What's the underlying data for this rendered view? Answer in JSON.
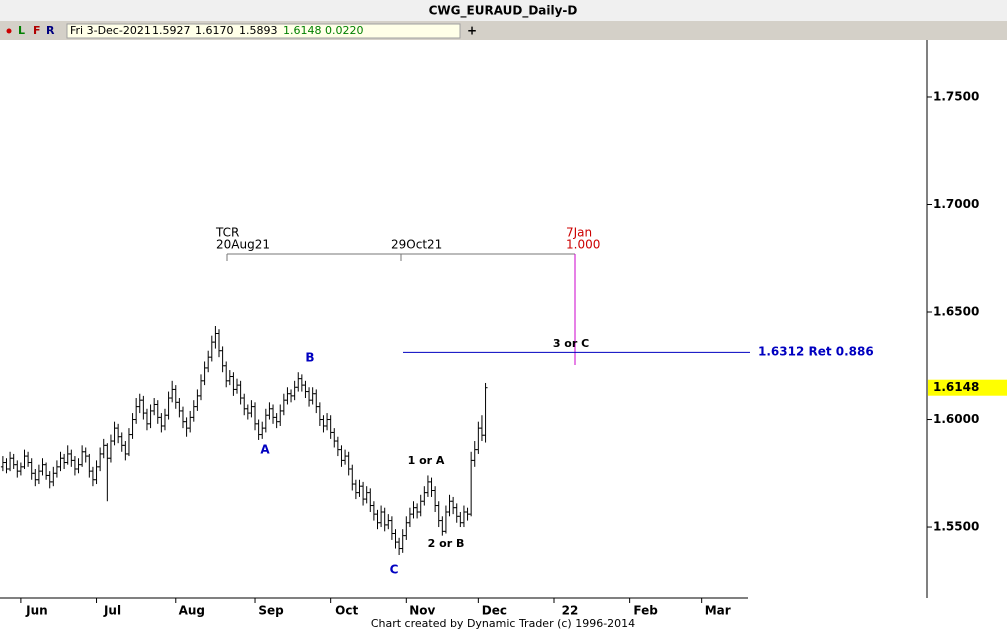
{
  "header": {
    "title": "CWG_EURAUD_Daily-D",
    "buttons": [
      "L",
      "F",
      "R"
    ],
    "readout": [
      "Fri 3-Dec-2021",
      "1.5927",
      "1.6170",
      "1.5893",
      "1.6148",
      "0.0220"
    ],
    "add": "+"
  },
  "chart_data": {
    "type": "ohlc",
    "color": "#000000",
    "bars": [
      [
        1.578,
        1.583,
        1.576,
        1.58
      ],
      [
        1.58,
        1.582,
        1.575,
        1.577
      ],
      [
        1.577,
        1.585,
        1.576,
        1.582
      ],
      [
        1.582,
        1.584,
        1.577,
        1.579
      ],
      [
        1.579,
        1.581,
        1.573,
        1.576
      ],
      [
        1.576,
        1.58,
        1.574,
        1.578
      ],
      [
        1.578,
        1.586,
        1.577,
        1.583
      ],
      [
        1.583,
        1.585,
        1.578,
        1.58
      ],
      [
        1.58,
        1.582,
        1.572,
        1.575
      ],
      [
        1.575,
        1.577,
        1.569,
        1.572
      ],
      [
        1.572,
        1.579,
        1.57,
        1.576
      ],
      [
        1.576,
        1.582,
        1.574,
        1.579
      ],
      [
        1.579,
        1.58,
        1.572,
        1.574
      ],
      [
        1.574,
        1.576,
        1.568,
        1.571
      ],
      [
        1.571,
        1.578,
        1.569,
        1.575
      ],
      [
        1.575,
        1.581,
        1.573,
        1.578
      ],
      [
        1.578,
        1.585,
        1.576,
        1.582
      ],
      [
        1.582,
        1.584,
        1.577,
        1.58
      ],
      [
        1.58,
        1.588,
        1.579,
        1.584
      ],
      [
        1.584,
        1.586,
        1.578,
        1.581
      ],
      [
        1.581,
        1.583,
        1.574,
        1.577
      ],
      [
        1.577,
        1.582,
        1.575,
        1.579
      ],
      [
        1.579,
        1.588,
        1.578,
        1.585
      ],
      [
        1.585,
        1.587,
        1.58,
        1.583
      ],
      [
        1.583,
        1.584,
        1.573,
        1.576
      ],
      [
        1.576,
        1.578,
        1.569,
        1.572
      ],
      [
        1.572,
        1.581,
        1.57,
        1.578
      ],
      [
        1.578,
        1.587,
        1.576,
        1.584
      ],
      [
        1.584,
        1.591,
        1.582,
        1.588
      ],
      [
        1.588,
        1.589,
        1.562,
        1.582
      ],
      [
        1.582,
        1.593,
        1.58,
        1.59
      ],
      [
        1.59,
        1.599,
        1.588,
        1.596
      ],
      [
        1.596,
        1.598,
        1.589,
        1.592
      ],
      [
        1.592,
        1.594,
        1.585,
        1.588
      ],
      [
        1.588,
        1.59,
        1.581,
        1.584
      ],
      [
        1.584,
        1.596,
        1.583,
        1.593
      ],
      [
        1.593,
        1.603,
        1.591,
        1.6
      ],
      [
        1.6,
        1.61,
        1.598,
        1.606
      ],
      [
        1.606,
        1.612,
        1.603,
        1.609
      ],
      [
        1.609,
        1.611,
        1.6,
        1.603
      ],
      [
        1.603,
        1.605,
        1.595,
        1.598
      ],
      [
        1.598,
        1.607,
        1.596,
        1.604
      ],
      [
        1.604,
        1.61,
        1.602,
        1.607
      ],
      [
        1.607,
        1.609,
        1.598,
        1.601
      ],
      [
        1.601,
        1.603,
        1.594,
        1.597
      ],
      [
        1.597,
        1.605,
        1.595,
        1.602
      ],
      [
        1.602,
        1.613,
        1.6,
        1.61
      ],
      [
        1.61,
        1.618,
        1.608,
        1.614
      ],
      [
        1.614,
        1.616,
        1.605,
        1.608
      ],
      [
        1.608,
        1.61,
        1.601,
        1.604
      ],
      [
        1.604,
        1.606,
        1.596,
        1.599
      ],
      [
        1.599,
        1.601,
        1.592,
        1.596
      ],
      [
        1.596,
        1.604,
        1.594,
        1.601
      ],
      [
        1.601,
        1.609,
        1.599,
        1.606
      ],
      [
        1.606,
        1.614,
        1.604,
        1.611
      ],
      [
        1.611,
        1.621,
        1.609,
        1.618
      ],
      [
        1.618,
        1.627,
        1.616,
        1.624
      ],
      [
        1.624,
        1.632,
        1.622,
        1.629
      ],
      [
        1.629,
        1.639,
        1.627,
        1.636
      ],
      [
        1.636,
        1.6435,
        1.633,
        1.64
      ],
      [
        1.64,
        1.642,
        1.629,
        1.632
      ],
      [
        1.632,
        1.634,
        1.622,
        1.625
      ],
      [
        1.625,
        1.627,
        1.615,
        1.618
      ],
      [
        1.618,
        1.623,
        1.616,
        1.62
      ],
      [
        1.62,
        1.622,
        1.611,
        1.614
      ],
      [
        1.614,
        1.619,
        1.612,
        1.616
      ],
      [
        1.616,
        1.618,
        1.607,
        1.61
      ],
      [
        1.61,
        1.612,
        1.602,
        1.605
      ],
      [
        1.605,
        1.607,
        1.6,
        1.603
      ],
      [
        1.603,
        1.609,
        1.601,
        1.606
      ],
      [
        1.606,
        1.608,
        1.595,
        1.598
      ],
      [
        1.598,
        1.6,
        1.5905,
        1.593
      ],
      [
        1.593,
        1.599,
        1.591,
        1.596
      ],
      [
        1.596,
        1.605,
        1.594,
        1.602
      ],
      [
        1.602,
        1.608,
        1.6,
        1.605
      ],
      [
        1.605,
        1.607,
        1.598,
        1.601
      ],
      [
        1.601,
        1.603,
        1.596,
        1.599
      ],
      [
        1.599,
        1.607,
        1.597,
        1.604
      ],
      [
        1.604,
        1.612,
        1.602,
        1.609
      ],
      [
        1.609,
        1.615,
        1.607,
        1.612
      ],
      [
        1.612,
        1.614,
        1.608,
        1.611
      ],
      [
        1.611,
        1.618,
        1.609,
        1.615
      ],
      [
        1.615,
        1.622,
        1.613,
        1.619
      ],
      [
        1.619,
        1.621,
        1.613,
        1.616
      ],
      [
        1.616,
        1.618,
        1.61,
        1.613
      ],
      [
        1.613,
        1.615,
        1.606,
        1.609
      ],
      [
        1.609,
        1.615,
        1.607,
        1.612
      ],
      [
        1.612,
        1.614,
        1.603,
        1.606
      ],
      [
        1.606,
        1.608,
        1.597,
        1.6
      ],
      [
        1.6,
        1.602,
        1.594,
        1.597
      ],
      [
        1.597,
        1.603,
        1.595,
        1.6
      ],
      [
        1.6,
        1.602,
        1.591,
        1.594
      ],
      [
        1.594,
        1.596,
        1.587,
        1.59
      ],
      [
        1.59,
        1.592,
        1.583,
        1.586
      ],
      [
        1.586,
        1.588,
        1.578,
        1.581
      ],
      [
        1.581,
        1.586,
        1.579,
        1.583
      ],
      [
        1.583,
        1.585,
        1.574,
        1.577
      ],
      [
        1.577,
        1.579,
        1.567,
        1.57
      ],
      [
        1.57,
        1.572,
        1.563,
        1.566
      ],
      [
        1.566,
        1.572,
        1.564,
        1.569
      ],
      [
        1.569,
        1.571,
        1.56,
        1.563
      ],
      [
        1.563,
        1.569,
        1.561,
        1.566
      ],
      [
        1.566,
        1.568,
        1.557,
        1.56
      ],
      [
        1.56,
        1.562,
        1.553,
        1.556
      ],
      [
        1.556,
        1.558,
        1.549,
        1.552
      ],
      [
        1.552,
        1.56,
        1.55,
        1.557
      ],
      [
        1.557,
        1.559,
        1.548,
        1.551
      ],
      [
        1.551,
        1.556,
        1.549,
        1.553
      ],
      [
        1.553,
        1.555,
        1.544,
        1.547
      ],
      [
        1.547,
        1.549,
        1.54,
        1.543
      ],
      [
        1.543,
        1.545,
        1.537,
        1.54
      ],
      [
        1.54,
        1.549,
        1.538,
        1.546
      ],
      [
        1.546,
        1.555,
        1.544,
        1.552
      ],
      [
        1.552,
        1.559,
        1.55,
        1.556
      ],
      [
        1.556,
        1.562,
        1.554,
        1.559
      ],
      [
        1.559,
        1.561,
        1.554,
        1.557
      ],
      [
        1.557,
        1.565,
        1.555,
        1.562
      ],
      [
        1.562,
        1.569,
        1.56,
        1.566
      ],
      [
        1.566,
        1.574,
        1.564,
        1.571
      ],
      [
        1.571,
        1.573,
        1.564,
        1.567
      ],
      [
        1.567,
        1.569,
        1.557,
        1.56
      ],
      [
        1.56,
        1.562,
        1.55,
        1.553
      ],
      [
        1.553,
        1.555,
        1.546,
        1.548
      ],
      [
        1.548,
        1.56,
        1.547,
        1.557
      ],
      [
        1.557,
        1.565,
        1.555,
        1.562
      ],
      [
        1.562,
        1.564,
        1.556,
        1.559
      ],
      [
        1.559,
        1.561,
        1.552,
        1.555
      ],
      [
        1.555,
        1.557,
        1.55,
        1.552
      ],
      [
        1.552,
        1.56,
        1.55,
        1.557
      ],
      [
        1.557,
        1.559,
        1.553,
        1.556
      ],
      [
        1.556,
        1.585,
        1.555,
        1.581
      ],
      [
        1.581,
        1.59,
        1.578,
        1.586
      ],
      [
        1.586,
        1.599,
        1.584,
        1.596
      ],
      [
        1.596,
        1.602,
        1.59,
        1.5927
      ],
      [
        1.5927,
        1.617,
        1.5893,
        1.6148
      ]
    ],
    "xlim": [
      -0.8,
      256
    ],
    "xticks": [
      {
        "value": 5,
        "label": "Jun"
      },
      {
        "value": 26,
        "label": "Jul"
      },
      {
        "value": 48,
        "label": "Aug"
      },
      {
        "value": 70,
        "label": "Sep"
      },
      {
        "value": 91,
        "label": "Oct"
      },
      {
        "value": 112,
        "label": "Nov"
      },
      {
        "value": 132,
        "label": "Dec"
      },
      {
        "value": 153,
        "label": "22"
      },
      {
        "value": 174,
        "label": "Feb"
      },
      {
        "value": 194,
        "label": "Mar"
      }
    ],
    "ylim": [
      1.517,
      1.7765
    ],
    "yticks": [
      {
        "value": 1.55,
        "label": "1.5500"
      },
      {
        "value": 1.6,
        "label": "1.6000"
      },
      {
        "value": 1.65,
        "label": "1.6500"
      },
      {
        "value": 1.7,
        "label": "1.7000"
      },
      {
        "value": 1.75,
        "label": "1.7500"
      }
    ],
    "retracement": 1.6312,
    "retracement_color": "#0000c0",
    "last_price": 1.6148,
    "last_price_color": "#ffff00",
    "annotations": {
      "tcr": "TCR",
      "start_date": "20Aug21",
      "mid_date": "29Oct21",
      "end_date": "7Jan",
      "ratio": "1.000",
      "target": "3 or C",
      "retracement_label": "1.6312 Ret 0.886",
      "wave_a": "A",
      "wave_b": "B",
      "wave_c": "C",
      "wave_1a": "1 or A",
      "wave_2b": "2 or B"
    }
  },
  "footer": "Chart created by Dynamic Trader  (c) 1996-2014"
}
